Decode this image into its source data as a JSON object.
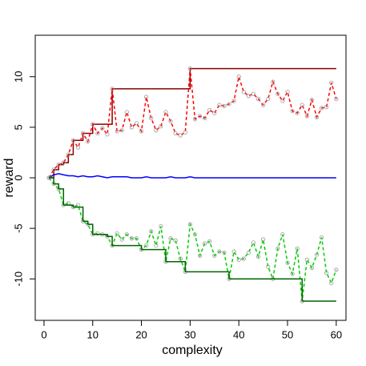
{
  "chart_data": {
    "type": "line",
    "x_label": "complexity",
    "y_label": "reward",
    "x": [
      1,
      2,
      3,
      4,
      5,
      6,
      7,
      8,
      9,
      10,
      11,
      12,
      13,
      14,
      15,
      16,
      17,
      18,
      19,
      20,
      21,
      22,
      23,
      24,
      25,
      26,
      27,
      28,
      29,
      30,
      31,
      32,
      33,
      34,
      35,
      36,
      37,
      38,
      39,
      40,
      41,
      42,
      43,
      44,
      45,
      46,
      47,
      48,
      49,
      50,
      51,
      52,
      53,
      54,
      55,
      56,
      57,
      58,
      59,
      60
    ],
    "xlim": [
      -1.8,
      62
    ],
    "ylim": [
      -14.1,
      14.1
    ],
    "xticks": [
      0,
      10,
      20,
      30,
      40,
      50,
      60
    ],
    "yticks": [
      -10,
      -5,
      0,
      5,
      10
    ],
    "series": [
      {
        "color": "#8b0000",
        "step": true,
        "values": [
          0,
          0.8,
          1.3,
          1.5,
          2.3,
          3.7,
          3.7,
          4.4,
          4.4,
          5.3,
          5.3,
          5.3,
          5.3,
          8.8,
          8.8,
          8.8,
          8.8,
          8.8,
          8.8,
          8.8,
          8.8,
          8.8,
          8.8,
          8.8,
          8.8,
          8.8,
          8.8,
          8.8,
          8.8,
          10.8,
          10.8,
          10.8,
          10.8,
          10.8,
          10.8,
          10.8,
          10.8,
          10.8,
          10.8,
          10.8,
          10.8,
          10.8,
          10.8,
          10.8,
          10.8,
          10.8,
          10.8,
          10.8,
          10.8,
          10.8,
          10.8,
          10.8,
          10.8,
          10.8,
          10.8,
          10.8,
          10.8,
          10.8,
          10.8,
          10.8
        ]
      },
      {
        "color": "#ff0000",
        "dashed": true,
        "values": [
          0,
          0.8,
          1.3,
          1.5,
          2.3,
          3.7,
          3,
          4.4,
          3.6,
          5.3,
          4.4,
          4.9,
          4.3,
          8.8,
          4.6,
          4.7,
          6.5,
          5,
          5.4,
          4.6,
          8,
          5.9,
          4.7,
          5.1,
          6.5,
          5.6,
          4.4,
          4.2,
          4.5,
          10.8,
          5.8,
          6.1,
          5.9,
          6.7,
          6.4,
          7.2,
          7.1,
          7.3,
          7.6,
          10,
          8.5,
          8.1,
          8.3,
          7.8,
          7.2,
          7.8,
          9.5,
          8.3,
          7.6,
          8.5,
          6.6,
          6.4,
          7.2,
          6.1,
          7.7,
          6,
          6.9,
          7,
          9.4,
          7.8
        ]
      },
      {
        "color": "#0000ff",
        "values": [
          0,
          0.3,
          0.4,
          0.3,
          0.2,
          0.2,
          0.1,
          0.2,
          0.1,
          0.1,
          0.2,
          0.1,
          0,
          0.1,
          0.1,
          0.1,
          0.1,
          0,
          0,
          0,
          0.1,
          0,
          0,
          0,
          0,
          0.1,
          0,
          0,
          0,
          0.1,
          0,
          0,
          0,
          0,
          0,
          0,
          0,
          0,
          0,
          0,
          0,
          0,
          0,
          0,
          0,
          0,
          0,
          0,
          0,
          0,
          0,
          0,
          0,
          0,
          0,
          0,
          0,
          0,
          0,
          0
        ]
      },
      {
        "color": "#00cc00",
        "dashed": true,
        "values": [
          0,
          -0.6,
          -1.1,
          -2.7,
          -2.5,
          -2.9,
          -2.7,
          -4.3,
          -4.6,
          -5.6,
          -5.5,
          -5.6,
          -5.8,
          -6.7,
          -5.5,
          -6.1,
          -5.6,
          -6,
          -6,
          -7.1,
          -6.7,
          -5.3,
          -6.7,
          -4.8,
          -8.3,
          -6,
          -6.2,
          -8,
          -9.3,
          -4.6,
          -5.6,
          -7.7,
          -6.5,
          -6.3,
          -7.7,
          -7.3,
          -7.4,
          -10,
          -7.3,
          -8.1,
          -8,
          -7.4,
          -6.4,
          -7.8,
          -6.1,
          -8.8,
          -10,
          -7,
          -5.6,
          -8.4,
          -9.5,
          -7,
          -12.2,
          -8.1,
          -8.9,
          -7.6,
          -5.9,
          -9.4,
          -10.4,
          -9.1
        ]
      },
      {
        "color": "#006400",
        "step": true,
        "values": [
          0,
          -0.6,
          -1.1,
          -2.7,
          -2.7,
          -2.9,
          -2.9,
          -4.3,
          -4.6,
          -5.6,
          -5.6,
          -5.6,
          -5.8,
          -6.7,
          -6.7,
          -6.7,
          -6.7,
          -6.7,
          -6.7,
          -7.1,
          -7.1,
          -7.1,
          -7.1,
          -7.1,
          -8.3,
          -8.3,
          -8.3,
          -8.3,
          -9.3,
          -9.3,
          -9.3,
          -9.3,
          -9.3,
          -9.3,
          -9.3,
          -9.3,
          -9.3,
          -10,
          -10,
          -10,
          -10,
          -10,
          -10,
          -10,
          -10,
          -10,
          -10,
          -10,
          -10,
          -10,
          -10,
          -10,
          -12.2,
          -12.2,
          -12.2,
          -12.2,
          -12.2,
          -12.2,
          -12.2,
          -12.2
        ]
      }
    ]
  }
}
